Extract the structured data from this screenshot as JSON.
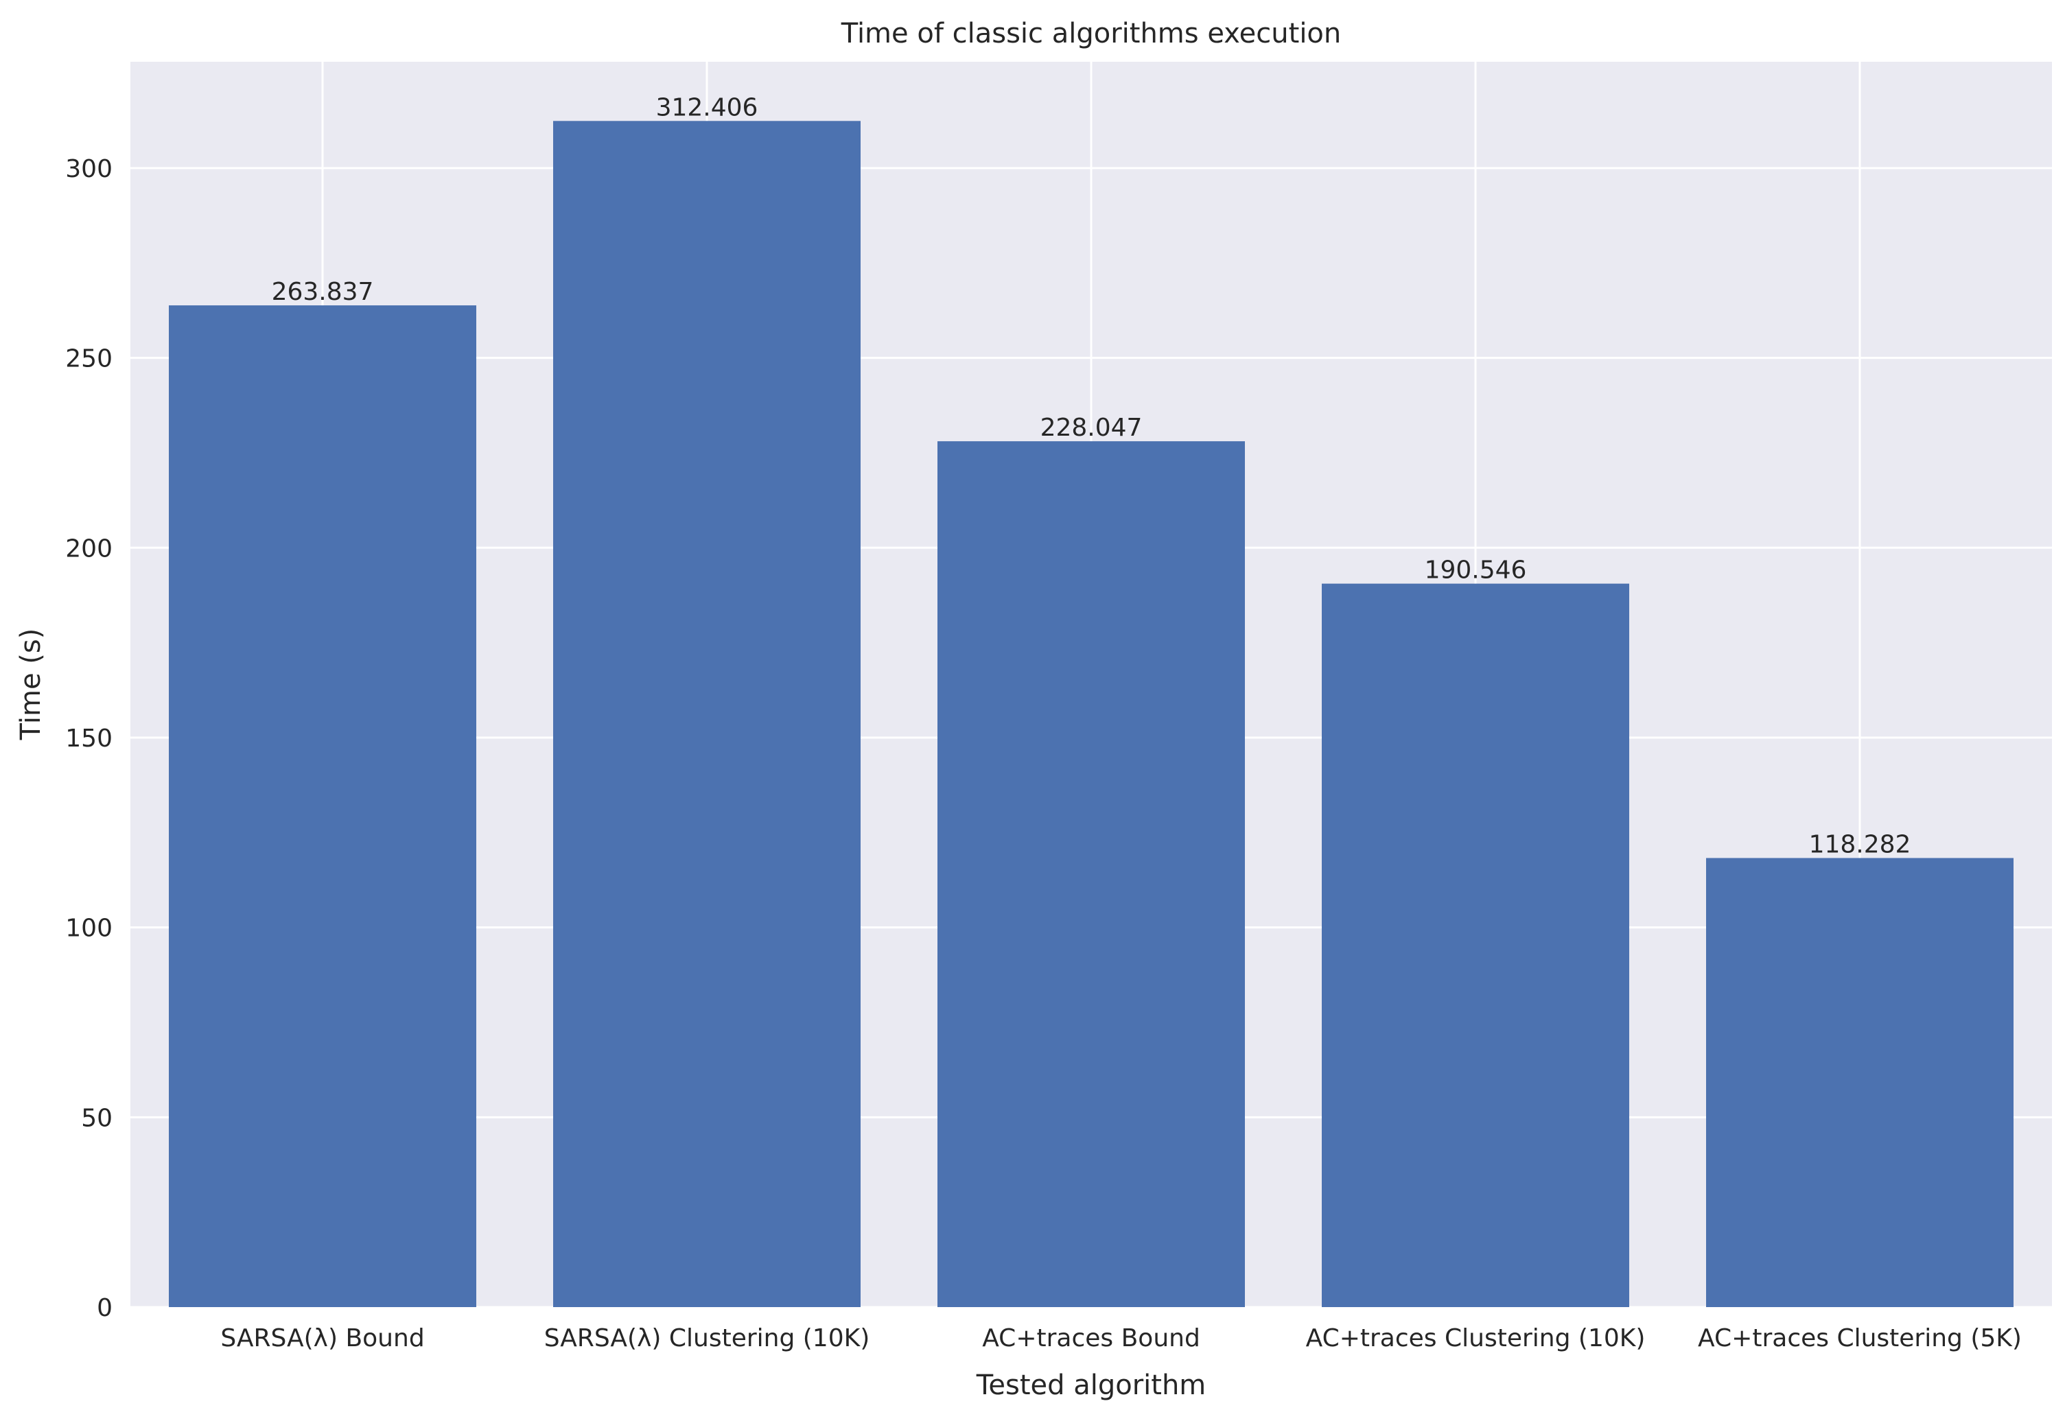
{
  "chart_data": {
    "type": "bar",
    "title": "Time of classic algorithms execution",
    "xlabel": "Tested algorithm",
    "ylabel": "Time (s)",
    "categories": [
      "SARSA(λ) Bound",
      "SARSA(λ) Clustering (10K)",
      "AC+traces Bound",
      "AC+traces Clustering (10K)",
      "AC+traces Clustering (5K)"
    ],
    "values": [
      263.837,
      312.406,
      228.047,
      190.546,
      118.282
    ],
    "data_labels": [
      "263.837",
      "312.406",
      "228.047",
      "190.546",
      "118.282"
    ],
    "ylim": [
      0,
      328
    ],
    "yticks": [
      0,
      50,
      100,
      150,
      200,
      250,
      300
    ],
    "grid": true,
    "colors": {
      "bar": "#4c72b0",
      "background": "#eaeaf2",
      "grid": "#ffffff",
      "text": "#262626"
    }
  }
}
